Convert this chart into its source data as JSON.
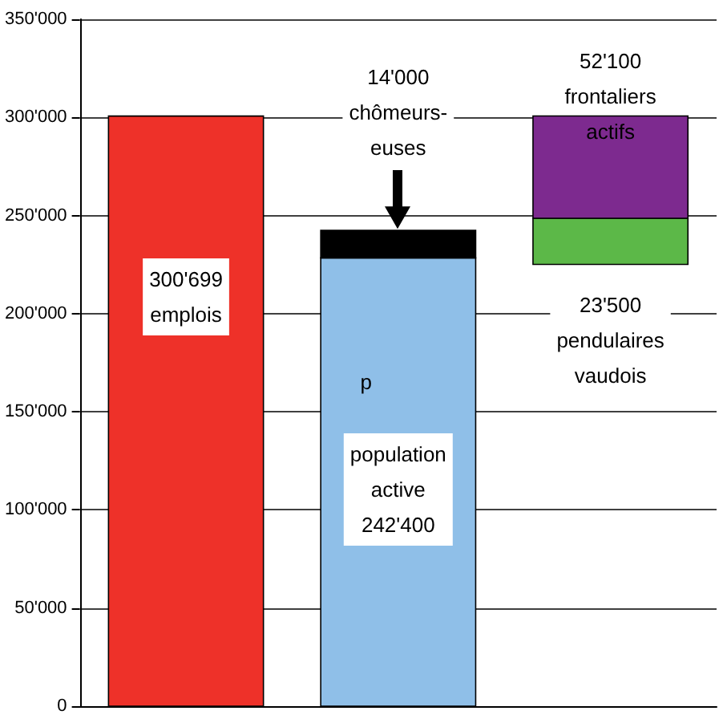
{
  "chart_data": {
    "type": "bar",
    "categories": [
      null,
      null,
      null
    ],
    "series": [
      {
        "color": "#ee3129",
        "values": [
          300699,
          null,
          null
        ]
      },
      {
        "color": "#8fbfe8",
        "values": [
          null,
          228400,
          null
        ]
      },
      {
        "color": "#000000",
        "values": [
          null,
          14000,
          null
        ],
        "base": [
          null,
          228400,
          null
        ]
      },
      {
        "color": "#5cb848",
        "values": [
          null,
          null,
          23500
        ],
        "base": [
          null,
          null,
          225100
        ]
      },
      {
        "color": "#7d2a8f",
        "values": [
          null,
          null,
          52100
        ],
        "base": [
          null,
          null,
          248600
        ]
      }
    ],
    "ylim": [
      0,
      350000
    ],
    "yticks": [
      0,
      {
        "value": 50000,
        "label": "50'000"
      },
      {
        "value": 100000,
        "label": "100'000"
      },
      {
        "value": 150000,
        "label": "150'000"
      },
      {
        "value": 200000,
        "label": "200'000"
      },
      {
        "value": 250000,
        "label": "250'000"
      },
      {
        "value": 300000,
        "label": "300'000"
      },
      {
        "value": 350000,
        "label": "350'000"
      }
    ],
    "grid": "y",
    "annotations": [
      "14'000\nchômeurs-\neuses",
      "52'100\nfrontaliers\nactifs",
      "23'500\npendulaires\nvaudois",
      "300'699\nemplois",
      "population\nactive\n242'400",
      "p"
    ]
  }
}
